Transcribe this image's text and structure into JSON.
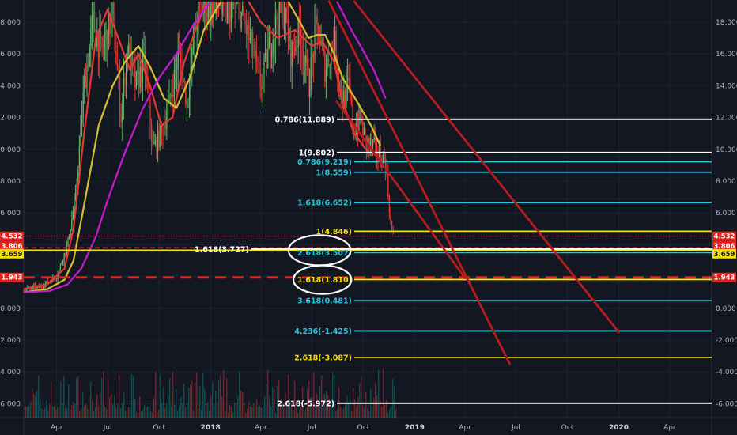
{
  "chart_data": {
    "type": "candlestick",
    "title": "",
    "y_axis": {
      "ticks": [
        "18.000",
        "16.000",
        "14.000",
        "12.000",
        "10.000",
        "8.000",
        "6.000",
        "4.000",
        "2.000",
        "0.000",
        "-2.000",
        "-4.000",
        "-6.000"
      ],
      "tick_values": [
        18,
        16,
        14,
        12,
        10,
        8,
        6,
        4,
        2,
        0,
        -2,
        -4,
        -6
      ],
      "range": [
        -6.9,
        19.3
      ]
    },
    "x_axis": {
      "ticks": [
        "Apr",
        "Jul",
        "Oct",
        "2018",
        "Apr",
        "Jul",
        "Oct",
        "2019",
        "Apr",
        "Jul",
        "Oct",
        "2020",
        "Apr"
      ],
      "tick_dates": [
        "2017-04",
        "2017-07",
        "2017-10",
        "2018-01",
        "2018-04",
        "2018-07",
        "2018-10",
        "2019-01",
        "2019-04",
        "2019-07",
        "2019-10",
        "2020-01",
        "2020-04"
      ],
      "range": [
        "2017-02",
        "2020-06"
      ]
    },
    "price_tags": [
      {
        "label": "4.532",
        "value": 4.532,
        "color": "#e41f1f",
        "line": "dotted"
      },
      {
        "label": "3.806",
        "value": 3.806,
        "color": "#e41f1f",
        "line": "dashed"
      },
      {
        "label": "3.659",
        "value": 3.659,
        "color": "#f4e100",
        "line": "solid"
      },
      {
        "label": "1.943",
        "value": 1.943,
        "color": "#e41f1f",
        "line": "dashed-thick"
      }
    ],
    "fib_levels": [
      {
        "label": "0.786(11.889)",
        "value": 11.889,
        "color": "#ffffff",
        "start": "2018-08"
      },
      {
        "label": "1(9.802)",
        "value": 9.802,
        "color": "#ffffff",
        "start": "2018-08"
      },
      {
        "label": "0.786(9.219)",
        "value": 9.219,
        "color": "#26c6da",
        "start": "2018-09"
      },
      {
        "label": "1(8.559)",
        "value": 8.559,
        "color": "#26c6da",
        "start": "2018-09"
      },
      {
        "label": "1.618(6.652)",
        "value": 6.652,
        "color": "#26c6da",
        "start": "2018-09"
      },
      {
        "label": "1(4.846)",
        "value": 4.846,
        "color": "#f4e100",
        "start": "2018-09"
      },
      {
        "label": "1.618(3.727)",
        "value": 3.727,
        "color": "#ffffff",
        "start": "2018-03"
      },
      {
        "label": "2.618(3.507)",
        "value": 3.507,
        "color": "#26c6da",
        "start": "2018-09"
      },
      {
        "label": "1.618(1.810)",
        "value": 1.81,
        "color": "#f4e100",
        "start": "2018-09"
      },
      {
        "label": "3.618(0.481)",
        "value": 0.481,
        "color": "#26c6da",
        "start": "2018-09"
      },
      {
        "label": "4.236(-1.425)",
        "value": -1.425,
        "color": "#26c6da",
        "start": "2018-09"
      },
      {
        "label": "2.618(-3.087)",
        "value": -3.087,
        "color": "#f4e100",
        "start": "2018-09"
      },
      {
        "label": "2.618(-5.972)",
        "value": -5.972,
        "color": "#ffffff",
        "start": "2018-08"
      }
    ],
    "trendlines": [
      {
        "from": [
          "2018-08-01",
          19.3
        ],
        "to": [
          "2019-06-20",
          -3.5
        ],
        "color": "#b71c1c"
      },
      {
        "from": [
          "2018-08-15",
          13.0
        ],
        "to": [
          "2019-04-01",
          1.9
        ],
        "color": "#b71c1c"
      },
      {
        "from": [
          "2018-09-15",
          19.3
        ],
        "to": [
          "2020-01-01",
          -1.5
        ],
        "color": "#b71c1c"
      }
    ],
    "moving_averages": [
      {
        "color": "#e53935",
        "points": [
          [
            "2017-02-01",
            1.2
          ],
          [
            "2017-03-15",
            1.5
          ],
          [
            "2017-04-15",
            2.5
          ],
          [
            "2017-05-01",
            5
          ],
          [
            "2017-05-20",
            11
          ],
          [
            "2017-06-10",
            17
          ],
          [
            "2017-07-01",
            18.8
          ],
          [
            "2017-07-20",
            17
          ],
          [
            "2017-08-10",
            15
          ],
          [
            "2017-08-25",
            16
          ],
          [
            "2017-09-15",
            14
          ],
          [
            "2017-10-05",
            11.5
          ],
          [
            "2017-10-25",
            12
          ],
          [
            "2017-11-15",
            15.5
          ],
          [
            "2017-12-05",
            17.5
          ],
          [
            "2017-12-25",
            19.3
          ]
        ]
      },
      {
        "color": "#e53935",
        "points": [
          [
            "2018-03-10",
            19.3
          ],
          [
            "2018-04-01",
            18
          ],
          [
            "2018-05-01",
            17
          ],
          [
            "2018-06-01",
            17.5
          ],
          [
            "2018-07-01",
            16.5
          ],
          [
            "2018-07-20",
            16.8
          ],
          [
            "2018-08-10",
            15.5
          ],
          [
            "2018-08-25",
            13
          ],
          [
            "2018-09-15",
            11
          ],
          [
            "2018-10-10",
            9.8
          ]
        ]
      },
      {
        "color": "#d4c02f",
        "points": [
          [
            "2017-02-01",
            1.0
          ],
          [
            "2017-03-15",
            1.2
          ],
          [
            "2017-04-15",
            1.8
          ],
          [
            "2017-05-01",
            3.0
          ],
          [
            "2017-05-20",
            6.5
          ],
          [
            "2017-06-15",
            11.5
          ],
          [
            "2017-07-10",
            14
          ],
          [
            "2017-08-01",
            15.5
          ],
          [
            "2017-08-25",
            16.5
          ],
          [
            "2017-09-15",
            15.2
          ],
          [
            "2017-10-10",
            13.2
          ],
          [
            "2017-11-01",
            12.6
          ],
          [
            "2017-11-25",
            14.5
          ],
          [
            "2017-12-20",
            17.5
          ],
          [
            "2018-01-20",
            19.3
          ]
        ]
      },
      {
        "color": "#d4c02f",
        "points": [
          [
            "2018-05-20",
            19.3
          ],
          [
            "2018-06-10",
            18
          ],
          [
            "2018-06-25",
            17
          ],
          [
            "2018-07-10",
            17.2
          ],
          [
            "2018-07-25",
            17.2
          ],
          [
            "2018-08-10",
            16
          ],
          [
            "2018-08-25",
            14.5
          ],
          [
            "2018-09-20",
            13
          ],
          [
            "2018-10-15",
            11.5
          ],
          [
            "2018-11-01",
            10.2
          ]
        ]
      },
      {
        "color": "#c71ad3",
        "points": [
          [
            "2017-02-01",
            1.0
          ],
          [
            "2017-03-20",
            1.1
          ],
          [
            "2017-04-20",
            1.5
          ],
          [
            "2017-05-15",
            2.5
          ],
          [
            "2017-06-10",
            4.5
          ],
          [
            "2017-07-01",
            6.8
          ],
          [
            "2017-08-01",
            9.8
          ],
          [
            "2017-09-01",
            12.5
          ],
          [
            "2017-10-01",
            14.5
          ],
          [
            "2017-11-01",
            16
          ],
          [
            "2017-12-01",
            17.8
          ],
          [
            "2018-01-01",
            19.3
          ]
        ]
      },
      {
        "color": "#c71ad3",
        "points": [
          [
            "2018-08-15",
            19.3
          ],
          [
            "2018-09-10",
            17.5
          ],
          [
            "2018-10-01",
            16.2
          ],
          [
            "2018-10-20",
            15
          ],
          [
            "2018-11-10",
            13.2
          ]
        ]
      }
    ],
    "candle_path": [
      [
        "2017-02-01",
        1.2
      ],
      [
        "2017-03-01",
        1.3
      ],
      [
        "2017-04-01",
        2
      ],
      [
        "2017-04-20",
        4
      ],
      [
        "2017-05-05",
        7
      ],
      [
        "2017-05-20",
        14
      ],
      [
        "2017-06-05",
        18
      ],
      [
        "2017-06-20",
        16
      ],
      [
        "2017-07-10",
        18.5
      ],
      [
        "2017-07-25",
        12
      ],
      [
        "2017-08-05",
        16.5
      ],
      [
        "2017-08-20",
        14
      ],
      [
        "2017-09-05",
        15.5
      ],
      [
        "2017-09-20",
        10
      ],
      [
        "2017-10-05",
        11
      ],
      [
        "2017-10-20",
        13
      ],
      [
        "2017-11-05",
        16
      ],
      [
        "2017-11-20",
        13
      ],
      [
        "2017-12-10",
        19
      ],
      [
        "2018-01-10",
        19.3
      ],
      [
        "2018-02-20",
        19
      ],
      [
        "2018-03-15",
        16.5
      ],
      [
        "2018-04-01",
        14
      ],
      [
        "2018-04-20",
        17
      ],
      [
        "2018-05-10",
        19.2
      ],
      [
        "2018-05-25",
        16
      ],
      [
        "2018-06-10",
        17.5
      ],
      [
        "2018-06-25",
        14
      ],
      [
        "2018-07-10",
        17.8
      ],
      [
        "2018-07-25",
        15
      ],
      [
        "2018-08-10",
        17
      ],
      [
        "2018-08-25",
        13
      ],
      [
        "2018-09-05",
        14
      ],
      [
        "2018-09-15",
        11
      ],
      [
        "2018-09-25",
        12
      ],
      [
        "2018-10-05",
        10.5
      ],
      [
        "2018-10-20",
        10.2
      ],
      [
        "2018-11-01",
        9.5
      ],
      [
        "2018-11-10",
        9.3
      ],
      [
        "2018-11-15",
        7
      ],
      [
        "2018-11-20",
        5
      ],
      [
        "2018-11-25",
        4.5
      ]
    ],
    "volume": {
      "axis_floor": -6.9,
      "max_height_value": 2.6
    },
    "annotations": [
      {
        "shape": "ellipse",
        "center": [
          "2018-07-15",
          3.65
        ],
        "rx_days": 75,
        "ry_value": 0.95
      },
      {
        "shape": "ellipse",
        "center": [
          "2018-07-20",
          1.8
        ],
        "rx_days": 70,
        "ry_value": 0.9
      }
    ]
  },
  "colors": {
    "background": "#131722",
    "grid": "#1e2230",
    "up": "#26a69a",
    "down": "#ef5350",
    "axis_text": "#b2b5be"
  }
}
